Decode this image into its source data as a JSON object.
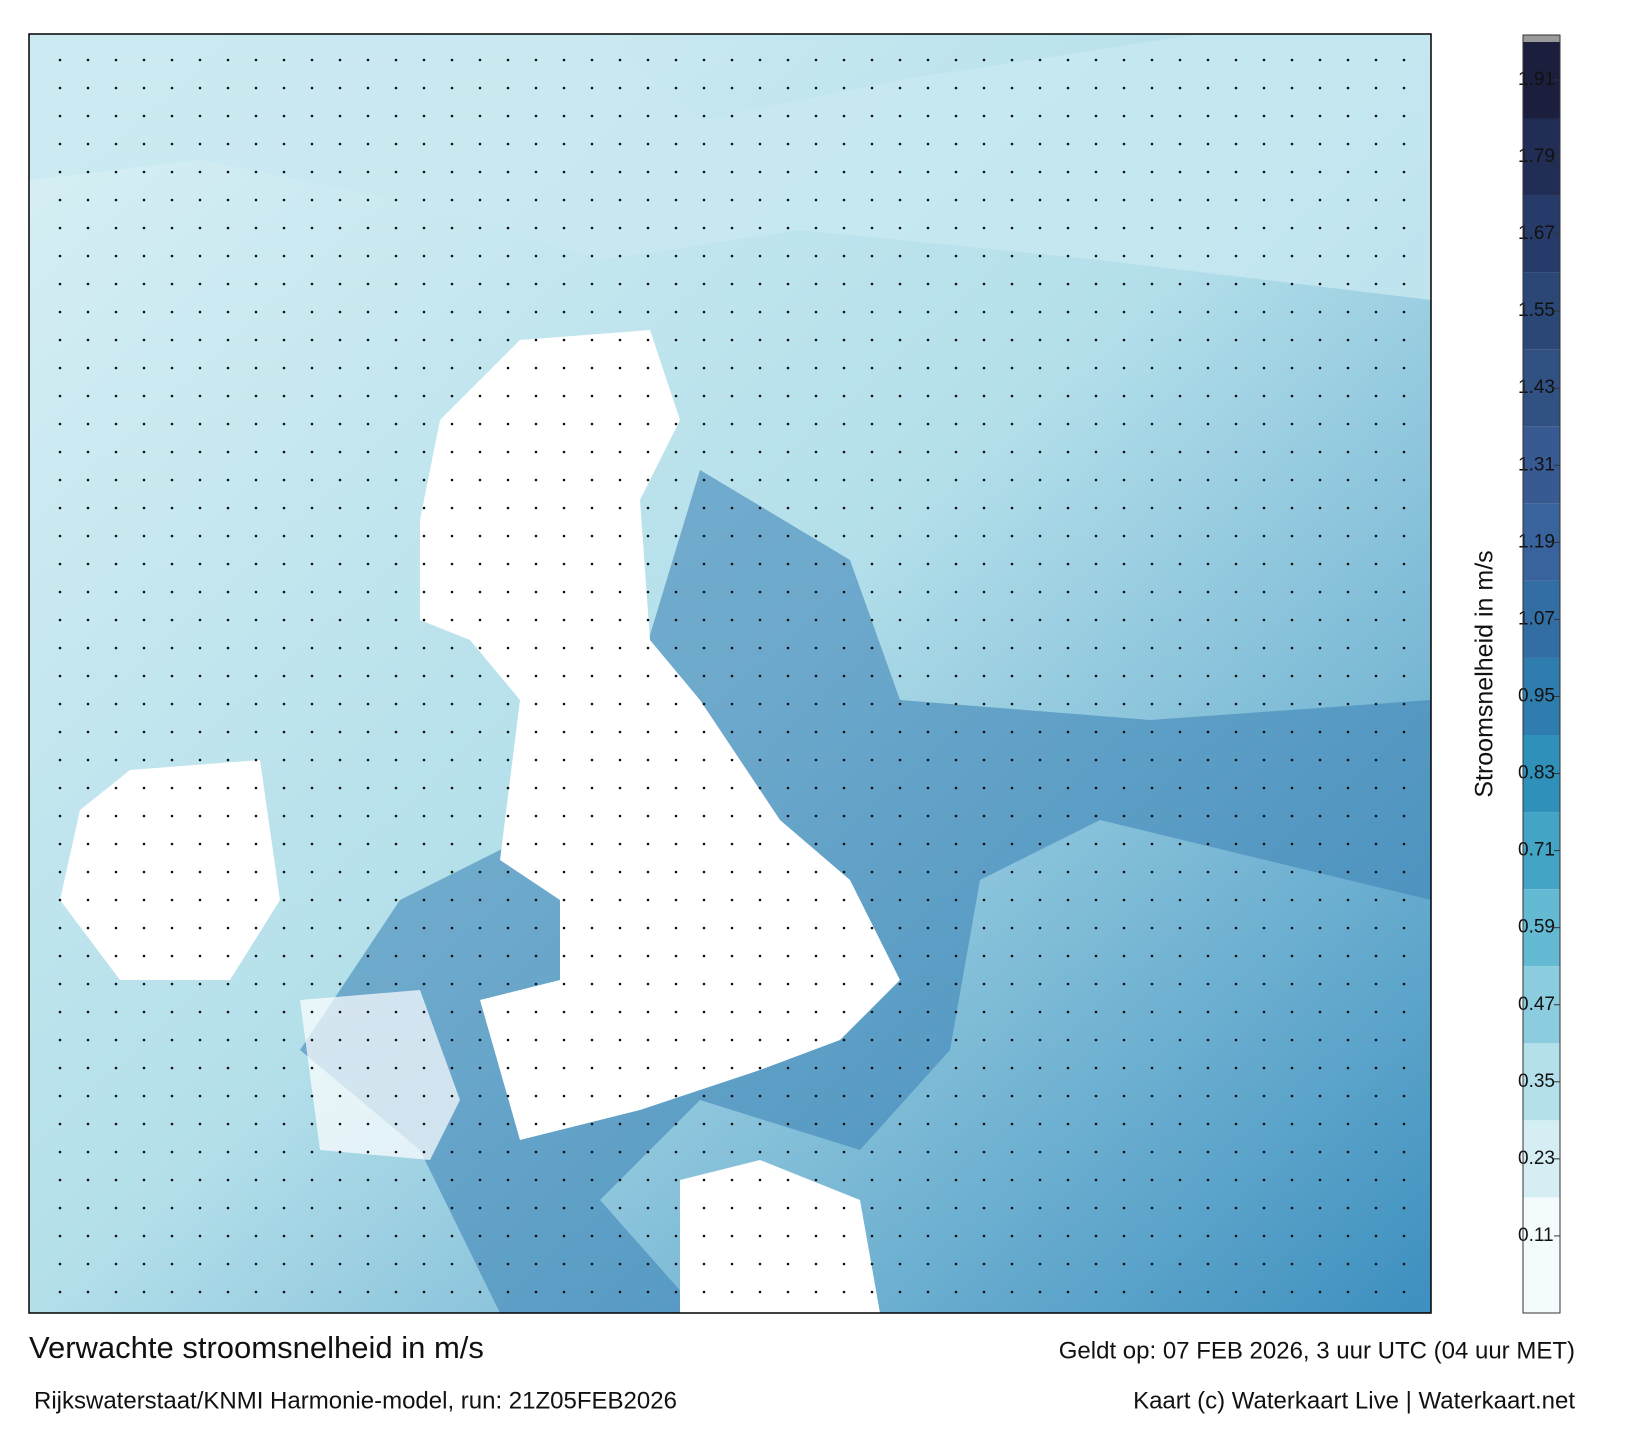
{
  "map": {
    "title": "Verwachte stroomsnelheid in m/s",
    "subtitle": "Rijkswaterstaat/KNMI Harmonie-model, run: 21Z05FEB2026",
    "valid_time": "Geldt op: 07 FEB 2026, 3 uur UTC (04 uur MET)",
    "credit": "Kaart (c) Waterkaart Live | Waterkaart.net"
  },
  "colorbar": {
    "label": "Stroomsnelheid in m/s",
    "clim": [
      -0.01,
      1.98
    ],
    "ticks": [
      0.11,
      0.23,
      0.35,
      0.47,
      0.59,
      0.71,
      0.83,
      0.95,
      1.07,
      1.19,
      1.31,
      1.43,
      1.55,
      1.67,
      1.79,
      1.91
    ],
    "colors": [
      "#f4fbfd",
      "#b9e2ec",
      "#6dbfd6",
      "#2f97bd",
      "#2f74a8",
      "#3a5f9a",
      "#2f4f7e",
      "#263a6a",
      "#1b1f3d"
    ]
  }
}
